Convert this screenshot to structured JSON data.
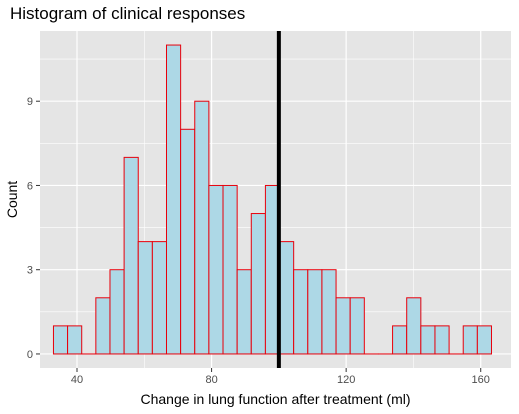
{
  "chart_data": {
    "type": "bar",
    "title": "Histogram of clinical responses",
    "xlabel": "Change in lung function after treatment (ml)",
    "ylabel": "Count",
    "xlim": [
      29,
      169
    ],
    "ylim": [
      -0.5,
      11.5
    ],
    "x_ticks": [
      40,
      80,
      120,
      160
    ],
    "y_ticks": [
      0,
      3,
      6,
      9
    ],
    "bin_width": 4.2,
    "bins": [
      {
        "start": 33.0,
        "count": 1
      },
      {
        "start": 37.2,
        "count": 1
      },
      {
        "start": 41.4,
        "count": 0
      },
      {
        "start": 45.6,
        "count": 2
      },
      {
        "start": 49.8,
        "count": 3
      },
      {
        "start": 54.0,
        "count": 7
      },
      {
        "start": 58.2,
        "count": 4
      },
      {
        "start": 62.4,
        "count": 4
      },
      {
        "start": 66.6,
        "count": 11
      },
      {
        "start": 70.8,
        "count": 8
      },
      {
        "start": 75.0,
        "count": 9
      },
      {
        "start": 79.2,
        "count": 6
      },
      {
        "start": 83.4,
        "count": 6
      },
      {
        "start": 87.6,
        "count": 3
      },
      {
        "start": 91.8,
        "count": 5
      },
      {
        "start": 96.0,
        "count": 6
      },
      {
        "start": 100.2,
        "count": 4
      },
      {
        "start": 104.4,
        "count": 3
      },
      {
        "start": 108.6,
        "count": 3
      },
      {
        "start": 112.8,
        "count": 3
      },
      {
        "start": 117.0,
        "count": 2
      },
      {
        "start": 121.2,
        "count": 2
      },
      {
        "start": 125.4,
        "count": 0
      },
      {
        "start": 129.6,
        "count": 0
      },
      {
        "start": 133.8,
        "count": 1
      },
      {
        "start": 138.0,
        "count": 2
      },
      {
        "start": 142.2,
        "count": 1
      },
      {
        "start": 146.4,
        "count": 1
      },
      {
        "start": 150.6,
        "count": 0
      },
      {
        "start": 154.8,
        "count": 1
      },
      {
        "start": 159.0,
        "count": 1
      }
    ],
    "reference_line_x": 100,
    "grid": true,
    "colors": {
      "panel": "#e5e5e5",
      "grid": "#ffffff",
      "bar_fill": "#add8e6",
      "bar_edge": "#e8000b",
      "reference_line": "#000000"
    }
  }
}
